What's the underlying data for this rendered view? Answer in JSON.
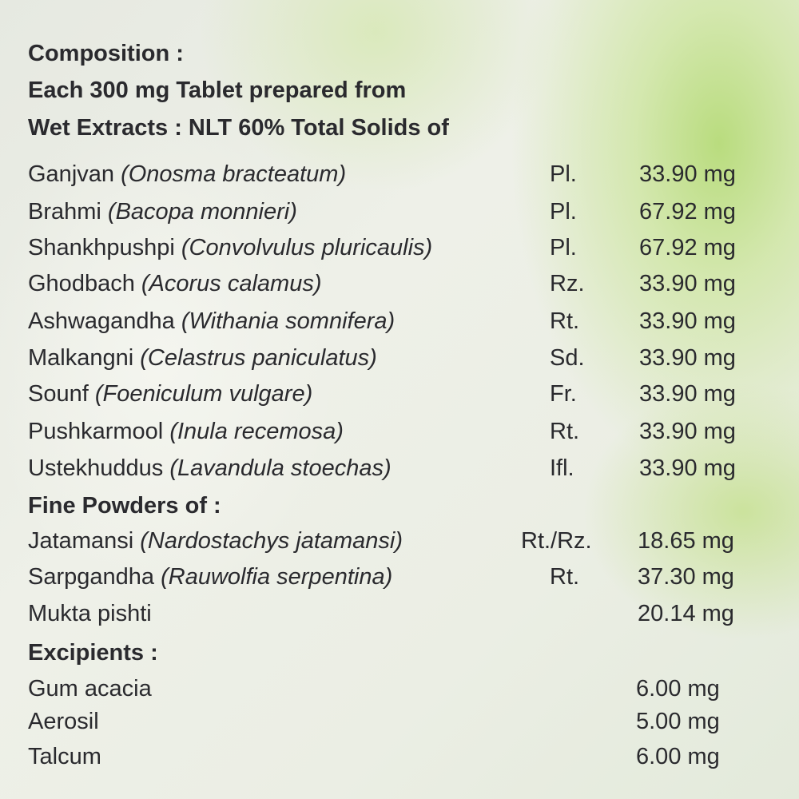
{
  "heading": {
    "title": "Composition :",
    "line2": "Each 300 mg Tablet prepared from",
    "line3": "Wet Extracts : NLT 60% Total Solids of"
  },
  "wet_extracts": [
    {
      "name": "Ganjvan",
      "latin": "(Onosma bracteatum)",
      "part": "Pl.",
      "amount": "33.90 mg"
    },
    {
      "name": "Brahmi",
      "latin": "(Bacopa monnieri)",
      "part": "Pl.",
      "amount": "67.92 mg"
    },
    {
      "name": "Shankhpushpi",
      "latin": "(Convolvulus pluricaulis)",
      "part": "Pl.",
      "amount": "67.92 mg"
    },
    {
      "name": "Ghodbach",
      "latin": "(Acorus calamus)",
      "part": "Rz.",
      "amount": "33.90 mg"
    },
    {
      "name": "Ashwagandha",
      "latin": "(Withania somnifera)",
      "part": "Rt.",
      "amount": "33.90 mg"
    },
    {
      "name": "Malkangni",
      "latin": "(Celastrus paniculatus)",
      "part": "Sd.",
      "amount": "33.90 mg"
    },
    {
      "name": "Sounf",
      "latin": "(Foeniculum vulgare)",
      "part": "Fr.",
      "amount": "33.90 mg"
    },
    {
      "name": "Pushkarmool",
      "latin": "(Inula recemosa)",
      "part": "Rt.",
      "amount": "33.90 mg"
    },
    {
      "name": "Ustekhuddus",
      "latin": "(Lavandula stoechas)",
      "part": "Ifl.",
      "amount": "33.90 mg"
    }
  ],
  "fine_powders": {
    "title": "Fine Powders of :",
    "items": [
      {
        "name": "Jatamansi",
        "latin": "(Nardostachys jatamansi)",
        "part": "Rt./Rz.",
        "amount": "18.65 mg"
      },
      {
        "name": "Sarpgandha",
        "latin": "(Rauwolfia serpentina)",
        "part": "Rt.",
        "amount": "37.30 mg"
      },
      {
        "name": "Mukta pishti",
        "latin": "",
        "part": "",
        "amount": "20.14 mg"
      }
    ]
  },
  "excipients": {
    "title": "Excipients :",
    "items": [
      {
        "name": "Gum acacia",
        "amount": "6.00 mg"
      },
      {
        "name": "Aerosil",
        "amount": "5.00 mg"
      },
      {
        "name": "Talcum",
        "amount": "6.00 mg"
      }
    ]
  },
  "colors": {
    "text": "#2a2a2e",
    "leaf_green": "#b9dc7e",
    "background": "#e9ece3"
  }
}
